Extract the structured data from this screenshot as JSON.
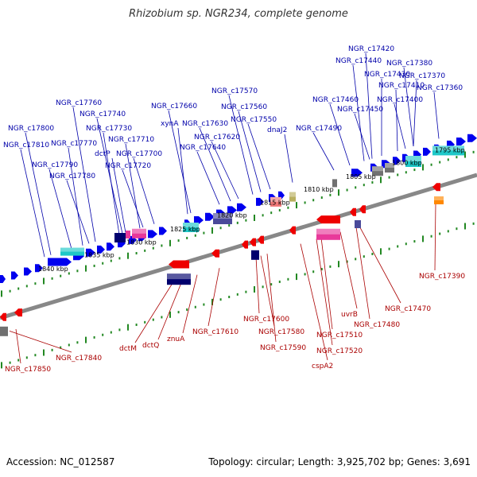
{
  "header": {
    "title": "Rhizobium sp. NGR234, complete genome"
  },
  "footer": {
    "accession": "Accession: NC_012587",
    "summary": "Topology: circular; Length: 3,925,702 bp; Genes: 3,691"
  },
  "colors": {
    "forward_label": "#0000aa",
    "reverse_label": "#aa0000",
    "backbone": "#888888",
    "tick": "#228822",
    "fwd_gene": "#0000ee",
    "rev_gene": "#ee0000",
    "navy": "#00006e",
    "teal": "#1ec8c8",
    "pink": "#e8389a",
    "slate": "#4a4a9a",
    "gray": "#707070",
    "salmon": "#f07878",
    "khaki": "#b8b060",
    "orange": "#ff8800"
  },
  "scale_labels": [
    "1795 kbp",
    "1800 kbp",
    "1805 kbp",
    "1810 kbp",
    "1815 kbp",
    "1820 kbp",
    "1825 kbp",
    "1830 kbp",
    "1835 kbp",
    "1840 kbp"
  ],
  "forward_labels": [
    "NGR_c17420",
    "NGR_c17440",
    "NGR_c17380",
    "NGR_c17430",
    "NGR_c17370",
    "NGR_c17410",
    "NGR_c17360",
    "NGR_c17570",
    "NGR_c17460",
    "NGR_c17400",
    "NGR_c17760",
    "NGR_c17660",
    "NGR_c17560",
    "NGR_c17450",
    "NGR_c17740",
    "NGR_c17550",
    "xynA",
    "NGR_c17630",
    "dnaJ2",
    "NGR_c17490",
    "NGR_c17800",
    "NGR_c17730",
    "NGR_c17620",
    "NGR_c17710",
    "NGR_c17810",
    "NGR_c17770",
    "dctP",
    "NGR_c17700",
    "NGR_c17640",
    "NGR_c17790",
    "NGR_c17720",
    "NGR_c17780"
  ],
  "reverse_labels": [
    "NGR_c17390",
    "NGR_c17470",
    "uvrB",
    "NGR_c17480",
    "NGR_c17610",
    "NGR_c17600",
    "NGR_c17580",
    "NGR_c17510",
    "dctM",
    "dctQ",
    "znuA",
    "NGR_c17590",
    "NGR_c17520",
    "cspA2",
    "NGR_c17840",
    "NGR_c17850"
  ]
}
